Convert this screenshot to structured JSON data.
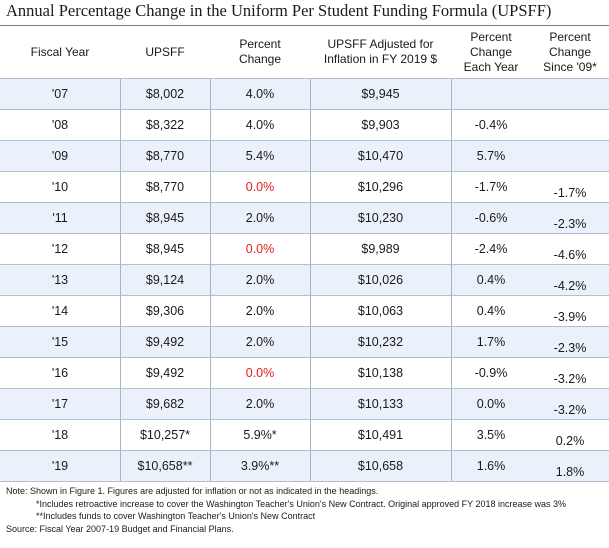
{
  "title": "Annual Percentage Change in the Uniform Per Student Funding Formula (UPSFF)",
  "headers": [
    "Fiscal Year",
    "UPSFF",
    "Percent\nChange",
    "UPSFF Adjusted for\nInflation in FY 2019 $",
    "Percent\nChange\nEach Year",
    "Percent\nChange\nSince '09*"
  ],
  "rows": [
    {
      "year": "'07",
      "upsff": "$8,002",
      "pct": "4.0%",
      "adj": "$9,945",
      "each": "",
      "since": ""
    },
    {
      "year": "'08",
      "upsff": "$8,322",
      "pct": "4.0%",
      "adj": "$9,903",
      "each": "-0.4%",
      "since": ""
    },
    {
      "year": "'09",
      "upsff": "$8,770",
      "pct": "5.4%",
      "adj": "$10,470",
      "each": "5.7%",
      "since": ""
    },
    {
      "year": "'10",
      "upsff": "$8,770",
      "pct": "0.0%",
      "adj": "$10,296",
      "each": "-1.7%",
      "since": "-1.7%"
    },
    {
      "year": "'11",
      "upsff": "$8,945",
      "pct": "2.0%",
      "adj": "$10,230",
      "each": "-0.6%",
      "since": "-2.3%"
    },
    {
      "year": "'12",
      "upsff": "$8,945",
      "pct": "0.0%",
      "adj": "$9,989",
      "each": "-2.4%",
      "since": "-4.6%"
    },
    {
      "year": "'13",
      "upsff": "$9,124",
      "pct": "2.0%",
      "adj": "$10,026",
      "each": "0.4%",
      "since": "-4.2%"
    },
    {
      "year": "'14",
      "upsff": "$9,306",
      "pct": "2.0%",
      "adj": "$10,063",
      "each": "0.4%",
      "since": "-3.9%"
    },
    {
      "year": "'15",
      "upsff": "$9,492",
      "pct": "2.0%",
      "adj": "$10,232",
      "each": "1.7%",
      "since": "-2.3%"
    },
    {
      "year": "'16",
      "upsff": "$9,492",
      "pct": "0.0%",
      "adj": "$10,138",
      "each": "-0.9%",
      "since": "-3.2%"
    },
    {
      "year": "'17",
      "upsff": "$9,682",
      "pct": "2.0%",
      "adj": "$10,133",
      "each": "0.0%",
      "since": "-3.2%"
    },
    {
      "year": "'18",
      "upsff": "$10,257*",
      "pct": "5.9%*",
      "adj": "$10,491",
      "each": "3.5%",
      "since": "0.2%"
    },
    {
      "year": "'19",
      "upsff": "$10,658**",
      "pct": "3.9%**",
      "adj": "$10,658",
      "each": "1.6%",
      "since": "1.8%"
    }
  ],
  "zero_change_color": "#e0201a",
  "shade_color": "#ebf1fa",
  "notes": [
    "Note: Shown in Figure 1. Figures are adjusted for inflation or not as indicated in the headings.",
    "*Includes retroactive increase to cover the Washington Teacher's Union's New Contract. Original approved FY 2018 increase was 3%",
    "**Includes funds to cover Washington Teacher's Union's New Contract",
    "Source: Fiscal Year 2007-19 Budget and Financial Plans."
  ]
}
